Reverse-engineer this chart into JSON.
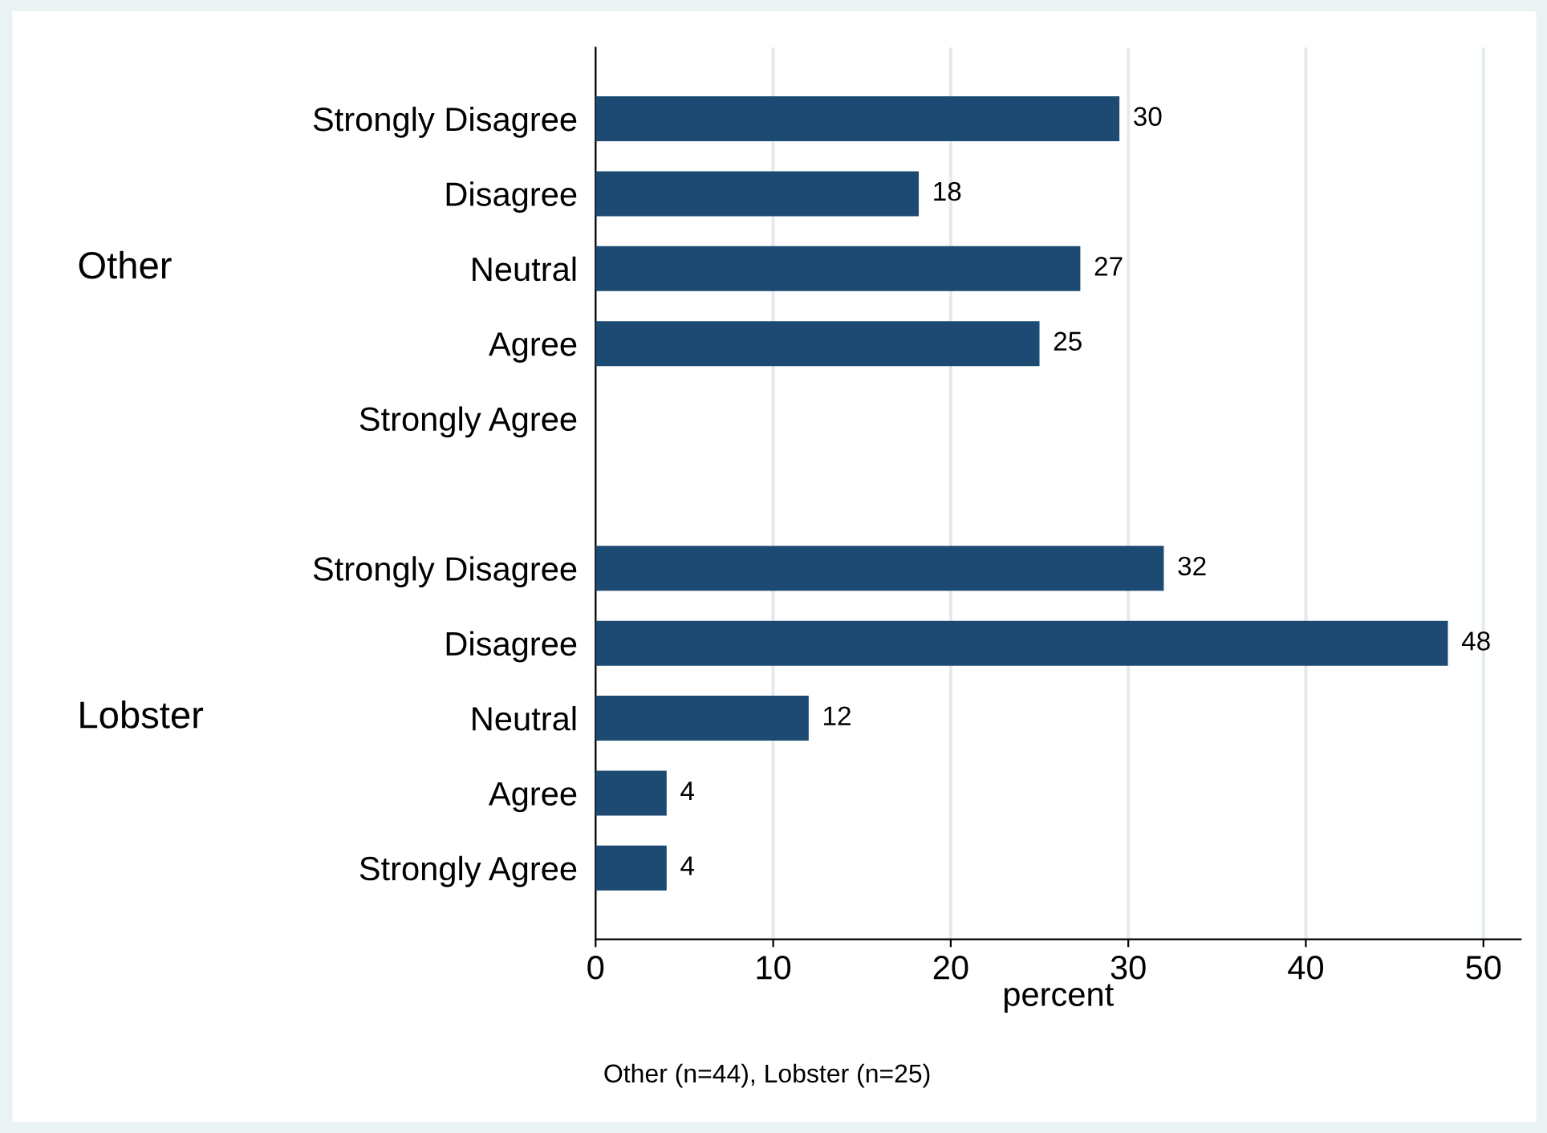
{
  "chart_data": {
    "type": "bar",
    "orientation": "horizontal",
    "xlabel": "percent",
    "categories": [
      "Strongly Disagree",
      "Disagree",
      "Neutral",
      "Agree",
      "Strongly Agree",
      null,
      "Strongly Disagree",
      "Disagree",
      "Neutral",
      "Agree",
      "Strongly Agree"
    ],
    "values": [
      29.5,
      18.2,
      27.3,
      25,
      null,
      null,
      32,
      48,
      12,
      4,
      4
    ],
    "value_labels": [
      "30",
      "18",
      "27",
      "25",
      null,
      null,
      "32",
      "48",
      "12",
      "4",
      "4"
    ],
    "color": "#1c4a72",
    "xlim": [
      0,
      52.1
    ],
    "xticks": [
      0,
      10,
      20,
      30,
      40,
      50
    ],
    "grid": "x",
    "annotations": [
      "Other",
      "Lobster",
      "Other (n=44), Lobster (n=25)"
    ]
  }
}
